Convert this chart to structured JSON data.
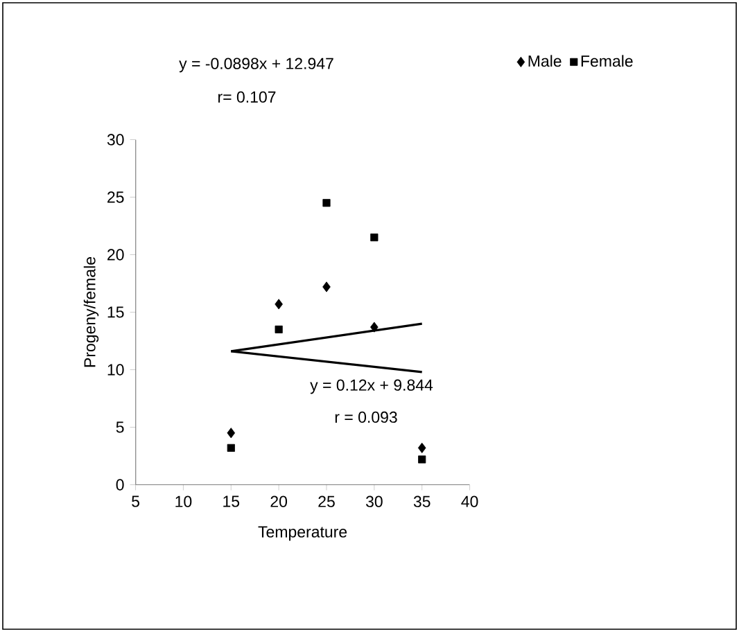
{
  "chart_data": {
    "type": "scatter",
    "xlabel": "Temperature",
    "ylabel": "Progeny/female",
    "xlim": [
      5,
      40
    ],
    "xticks": [
      5,
      10,
      15,
      20,
      25,
      30,
      35,
      40
    ],
    "ylim": [
      0,
      30
    ],
    "yticks": [
      0,
      5,
      10,
      15,
      20,
      25,
      30
    ],
    "legend": "top right",
    "grid": false,
    "series": [
      {
        "name": "Male",
        "color": "#000000",
        "marker": "diamond",
        "x": [
          15,
          20,
          25,
          30,
          35
        ],
        "values": [
          4.5,
          15.7,
          17.2,
          13.7,
          3.2
        ]
      },
      {
        "name": "Female",
        "color": "#000000",
        "marker": "square",
        "x": [
          15,
          20,
          25,
          30,
          35
        ],
        "values": [
          3.2,
          13.5,
          24.5,
          21.5,
          2.2
        ]
      },
      {
        "type": "line",
        "color": "#000000",
        "marker": "none",
        "x": [
          15,
          35
        ],
        "values": [
          11.6,
          14.0
        ]
      },
      {
        "type": "line",
        "color": "#000000",
        "marker": "none",
        "x": [
          15,
          35
        ],
        "values": [
          11.6,
          9.8
        ]
      }
    ],
    "annotations": [
      "y = -0.0898x + 12.947",
      "r= 0.107",
      "y = 0.12x + 9.844",
      "r = 0.093"
    ]
  }
}
